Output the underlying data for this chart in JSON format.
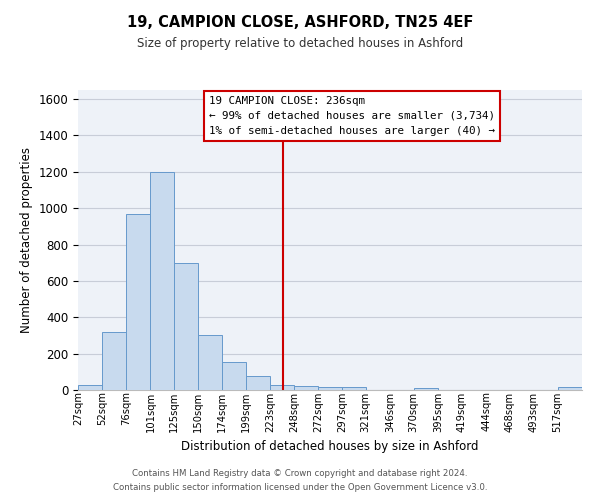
{
  "title": "19, CAMPION CLOSE, ASHFORD, TN25 4EF",
  "subtitle": "Size of property relative to detached houses in Ashford",
  "xlabel": "Distribution of detached houses by size in Ashford",
  "ylabel": "Number of detached properties",
  "bar_color": "#c8daee",
  "bar_edge_color": "#6699cc",
  "plot_bg_color": "#eef2f8",
  "fig_bg_color": "#ffffff",
  "grid_color": "#c8cdd8",
  "vline_x": 236,
  "vline_color": "#cc0000",
  "bin_edges": [
    27,
    52,
    76,
    101,
    125,
    150,
    174,
    199,
    223,
    248,
    272,
    297,
    321,
    346,
    370,
    395,
    419,
    444,
    468,
    493,
    517,
    542
  ],
  "bar_heights": [
    30,
    320,
    970,
    1200,
    700,
    305,
    155,
    75,
    25,
    20,
    15,
    15,
    0,
    0,
    10,
    0,
    0,
    0,
    0,
    0,
    15
  ],
  "ylim": [
    0,
    1650
  ],
  "yticks": [
    0,
    200,
    400,
    600,
    800,
    1000,
    1200,
    1400,
    1600
  ],
  "xtick_labels": [
    "27sqm",
    "52sqm",
    "76sqm",
    "101sqm",
    "125sqm",
    "150sqm",
    "174sqm",
    "199sqm",
    "223sqm",
    "248sqm",
    "272sqm",
    "297sqm",
    "321sqm",
    "346sqm",
    "370sqm",
    "395sqm",
    "419sqm",
    "444sqm",
    "468sqm",
    "493sqm",
    "517sqm"
  ],
  "annotation_title": "19 CAMPION CLOSE: 236sqm",
  "annotation_line1": "← 99% of detached houses are smaller (3,734)",
  "annotation_line2": "1% of semi-detached houses are larger (40) →",
  "annotation_box_color": "#ffffff",
  "annotation_box_edge": "#cc0000",
  "footer1": "Contains HM Land Registry data © Crown copyright and database right 2024.",
  "footer2": "Contains public sector information licensed under the Open Government Licence v3.0."
}
